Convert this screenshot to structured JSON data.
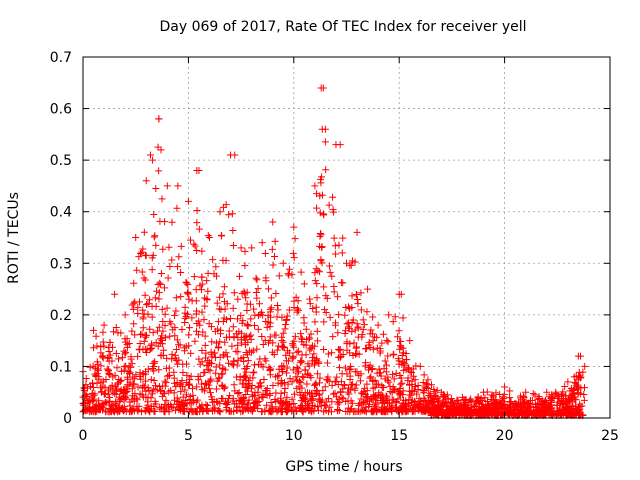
{
  "chart_data": {
    "type": "scatter",
    "title": "Day 069 of 2017, Rate Of TEC Index for receiver yell",
    "xlabel": "GPS time / hours",
    "ylabel": "ROTI / TECUs",
    "xlim": [
      0,
      25
    ],
    "ylim": [
      0,
      0.7
    ],
    "x_ticks": [
      "0",
      "5",
      "10",
      "15",
      "20",
      "25"
    ],
    "y_ticks": [
      "0",
      "0.1",
      "0.2",
      "0.3",
      "0.4",
      "0.5",
      "0.6",
      "0.7"
    ],
    "grid": true,
    "marker": "+",
    "color": "#ff0000",
    "series": [
      {
        "envelope_description": "dense cloud of ROTI samples; upper envelope (hour, ROTI) pairs",
        "x": [
          0.0,
          0.5,
          1.0,
          1.5,
          2.0,
          2.5,
          3.0,
          3.3,
          3.6,
          4.0,
          4.5,
          5.0,
          5.5,
          6.0,
          6.5,
          7.0,
          7.5,
          8.0,
          8.5,
          9.0,
          9.5,
          10.0,
          10.5,
          11.0,
          11.3,
          11.5,
          12.0,
          12.5,
          13.0,
          13.5,
          14.0,
          14.5,
          15.0,
          15.5,
          16.0,
          17.0,
          18.0,
          19.0,
          20.0,
          21.0,
          22.0,
          23.0,
          23.5,
          23.8
        ],
        "y": [
          0.09,
          0.17,
          0.18,
          0.24,
          0.2,
          0.35,
          0.46,
          0.5,
          0.58,
          0.45,
          0.45,
          0.42,
          0.48,
          0.35,
          0.4,
          0.51,
          0.33,
          0.33,
          0.34,
          0.38,
          0.3,
          0.37,
          0.26,
          0.45,
          0.64,
          0.56,
          0.53,
          0.3,
          0.36,
          0.25,
          0.18,
          0.2,
          0.24,
          0.15,
          0.1,
          0.05,
          0.04,
          0.05,
          0.06,
          0.05,
          0.05,
          0.07,
          0.12,
          0.1
        ]
      }
    ],
    "notable_points": [
      {
        "x": 3.6,
        "y": 0.58
      },
      {
        "x": 3.7,
        "y": 0.52
      },
      {
        "x": 3.2,
        "y": 0.51
      },
      {
        "x": 7.2,
        "y": 0.51
      },
      {
        "x": 5.4,
        "y": 0.48
      },
      {
        "x": 11.4,
        "y": 0.64
      },
      {
        "x": 11.35,
        "y": 0.56
      },
      {
        "x": 12.2,
        "y": 0.53
      },
      {
        "x": 15.1,
        "y": 0.24
      },
      {
        "x": 23.6,
        "y": 0.12
      }
    ]
  }
}
